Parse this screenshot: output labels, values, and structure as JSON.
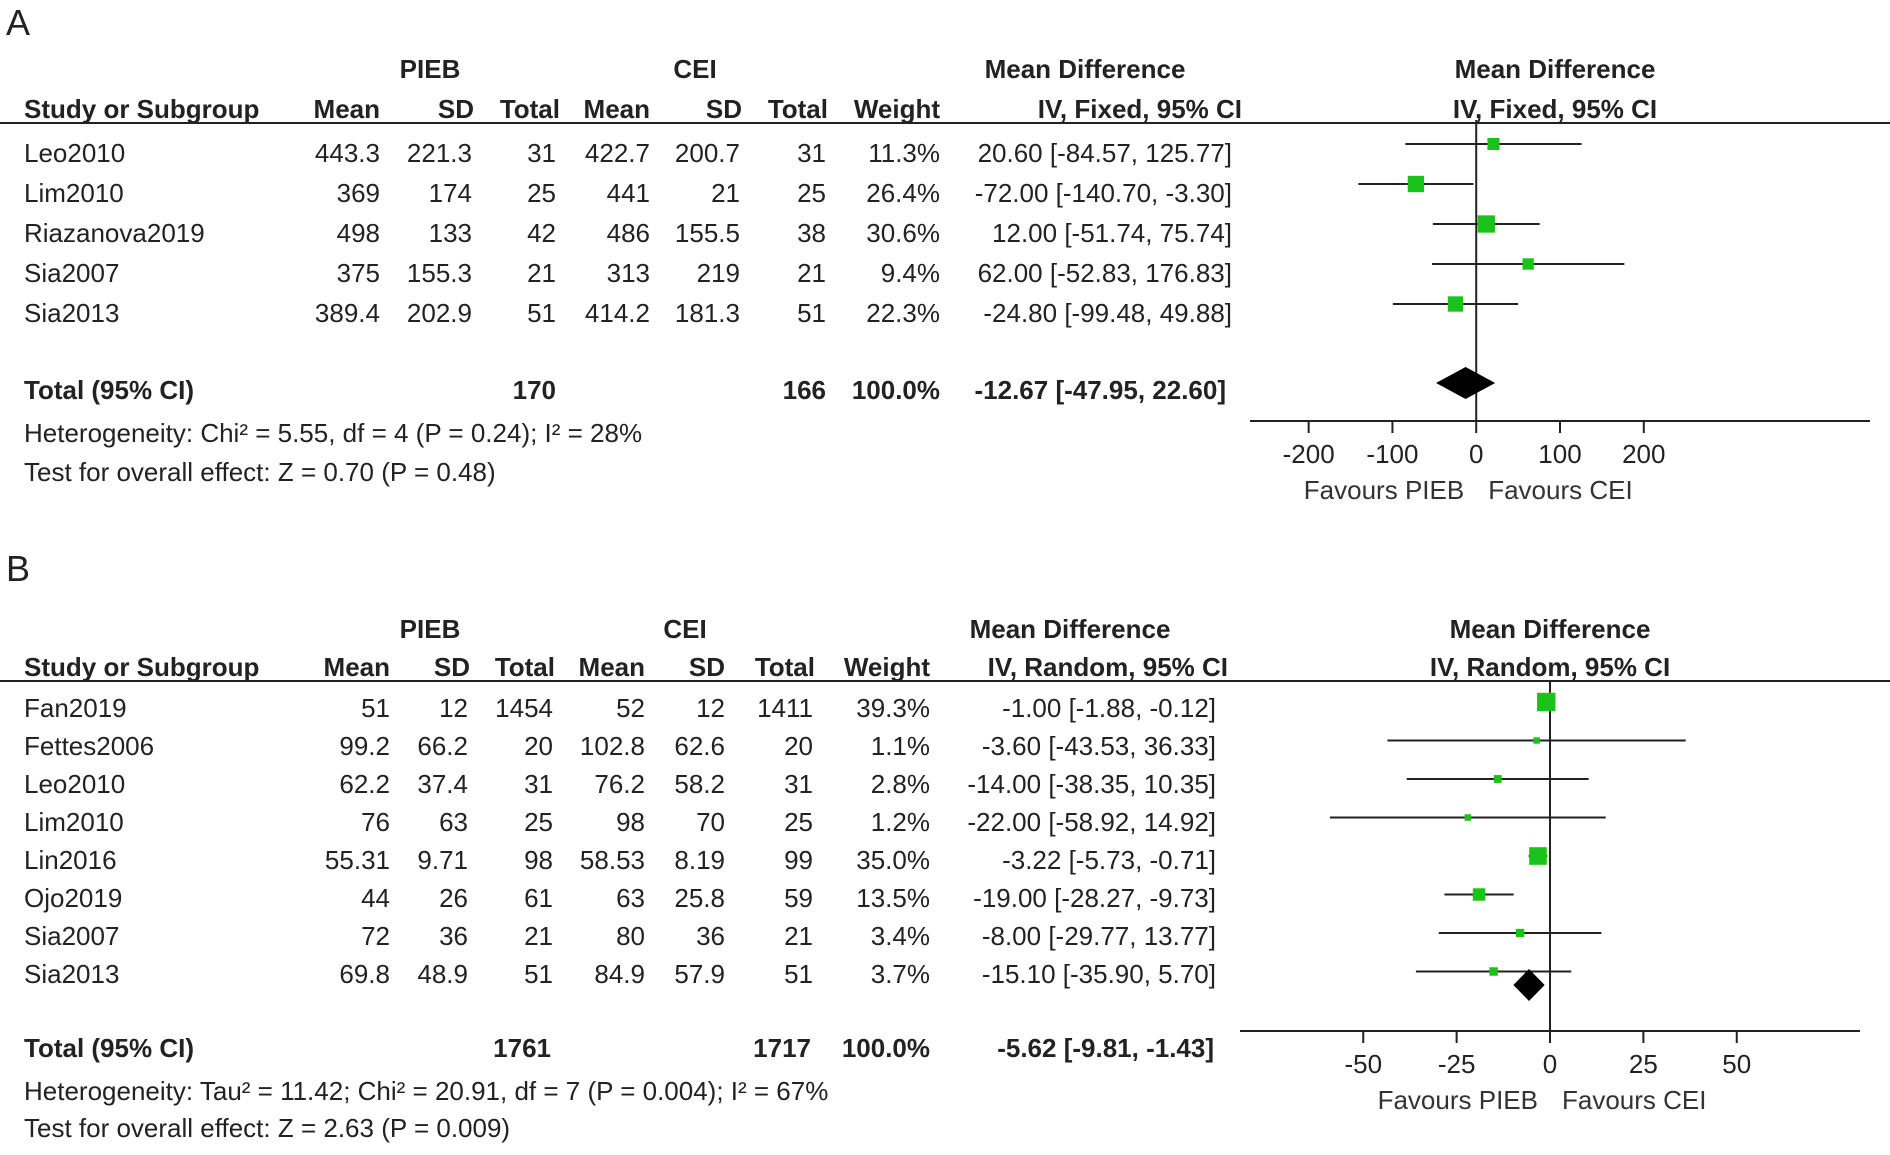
{
  "chart_data": [
    {
      "type": "forest",
      "panel_label": "A",
      "group_labels": {
        "experimental": "PIEB",
        "control": "CEI"
      },
      "columns": [
        "Study or Subgroup",
        "Mean",
        "SD",
        "Total",
        "Mean",
        "SD",
        "Total",
        "Weight",
        "IV, Fixed, 95% CI",
        "IV, Fixed, 95% CI"
      ],
      "effect_header": "Mean Difference",
      "studies": [
        {
          "name": "Leo2010",
          "e_mean": "443.3",
          "e_sd": "221.3",
          "e_total": "31",
          "c_mean": "422.7",
          "c_sd": "200.7",
          "c_total": "31",
          "weight": "11.3%",
          "ci_text": "20.60 [-84.57, 125.77]",
          "md": 20.6,
          "lo": -84.57,
          "hi": 125.77,
          "w": 11.3
        },
        {
          "name": "Lim2010",
          "e_mean": "369",
          "e_sd": "174",
          "e_total": "25",
          "c_mean": "441",
          "c_sd": "21",
          "c_total": "25",
          "weight": "26.4%",
          "ci_text": "-72.00 [-140.70, -3.30]",
          "md": -72.0,
          "lo": -140.7,
          "hi": -3.3,
          "w": 26.4
        },
        {
          "name": "Riazanova2019",
          "e_mean": "498",
          "e_sd": "133",
          "e_total": "42",
          "c_mean": "486",
          "c_sd": "155.5",
          "c_total": "38",
          "weight": "30.6%",
          "ci_text": "12.00 [-51.74, 75.74]",
          "md": 12.0,
          "lo": -51.74,
          "hi": 75.74,
          "w": 30.6
        },
        {
          "name": "Sia2007",
          "e_mean": "375",
          "e_sd": "155.3",
          "e_total": "21",
          "c_mean": "313",
          "c_sd": "219",
          "c_total": "21",
          "weight": "9.4%",
          "ci_text": "62.00 [-52.83, 176.83]",
          "md": 62.0,
          "lo": -52.83,
          "hi": 176.83,
          "w": 9.4
        },
        {
          "name": "Sia2013",
          "e_mean": "389.4",
          "e_sd": "202.9",
          "e_total": "51",
          "c_mean": "414.2",
          "c_sd": "181.3",
          "c_total": "51",
          "weight": "22.3%",
          "ci_text": "-24.80 [-99.48, 49.88]",
          "md": -24.8,
          "lo": -99.48,
          "hi": 49.88,
          "w": 22.3
        }
      ],
      "total": {
        "label": "Total (95% CI)",
        "e_total": "170",
        "c_total": "166",
        "weight": "100.0%",
        "ci_text": "-12.67 [-47.95, 22.60]",
        "md": -12.67,
        "lo": -47.95,
        "hi": 22.6
      },
      "heterogeneity": "Heterogeneity: Chi² = 5.55, df = 4 (P = 0.24); I² = 28%",
      "overall_effect": "Test for overall effect: Z = 0.70 (P = 0.48)",
      "axis": {
        "xlim": [
          -270,
          470
        ],
        "ticks": [
          -200,
          -100,
          0,
          100,
          200
        ],
        "tick_labels": [
          "-200",
          "-100",
          "0",
          "100",
          "200"
        ]
      },
      "favours_left": "Favours PIEB",
      "favours_right": "Favours CEI",
      "marker_color": "#19c319"
    },
    {
      "type": "forest",
      "panel_label": "B",
      "group_labels": {
        "experimental": "PIEB",
        "control": "CEI"
      },
      "columns": [
        "Study or Subgroup",
        "Mean",
        "SD",
        "Total",
        "Mean",
        "SD",
        "Total",
        "Weight",
        "IV, Random, 95% CI",
        "IV, Random, 95% CI"
      ],
      "effect_header": "Mean Difference",
      "studies": [
        {
          "name": "Fan2019",
          "e_mean": "51",
          "e_sd": "12",
          "e_total": "1454",
          "c_mean": "52",
          "c_sd": "12",
          "c_total": "1411",
          "weight": "39.3%",
          "ci_text": "-1.00 [-1.88, -0.12]",
          "md": -1.0,
          "lo": -1.88,
          "hi": -0.12,
          "w": 39.3
        },
        {
          "name": "Fettes2006",
          "e_mean": "99.2",
          "e_sd": "66.2",
          "e_total": "20",
          "c_mean": "102.8",
          "c_sd": "62.6",
          "c_total": "20",
          "weight": "1.1%",
          "ci_text": "-3.60 [-43.53, 36.33]",
          "md": -3.6,
          "lo": -43.53,
          "hi": 36.33,
          "w": 1.1
        },
        {
          "name": "Leo2010",
          "e_mean": "62.2",
          "e_sd": "37.4",
          "e_total": "31",
          "c_mean": "76.2",
          "c_sd": "58.2",
          "c_total": "31",
          "weight": "2.8%",
          "ci_text": "-14.00 [-38.35, 10.35]",
          "md": -14.0,
          "lo": -38.35,
          "hi": 10.35,
          "w": 2.8
        },
        {
          "name": "Lim2010",
          "e_mean": "76",
          "e_sd": "63",
          "e_total": "25",
          "c_mean": "98",
          "c_sd": "70",
          "c_total": "25",
          "weight": "1.2%",
          "ci_text": "-22.00 [-58.92, 14.92]",
          "md": -22.0,
          "lo": -58.92,
          "hi": 14.92,
          "w": 1.2
        },
        {
          "name": "Lin2016",
          "e_mean": "55.31",
          "e_sd": "9.71",
          "e_total": "98",
          "c_mean": "58.53",
          "c_sd": "8.19",
          "c_total": "99",
          "weight": "35.0%",
          "ci_text": "-3.22 [-5.73, -0.71]",
          "md": -3.22,
          "lo": -5.73,
          "hi": -0.71,
          "w": 35.0
        },
        {
          "name": "Ojo2019",
          "e_mean": "44",
          "e_sd": "26",
          "e_total": "61",
          "c_mean": "63",
          "c_sd": "25.8",
          "c_total": "59",
          "weight": "13.5%",
          "ci_text": "-19.00 [-28.27, -9.73]",
          "md": -19.0,
          "lo": -28.27,
          "hi": -9.73,
          "w": 13.5
        },
        {
          "name": "Sia2007",
          "e_mean": "72",
          "e_sd": "36",
          "e_total": "21",
          "c_mean": "80",
          "c_sd": "36",
          "c_total": "21",
          "weight": "3.4%",
          "ci_text": "-8.00 [-29.77, 13.77]",
          "md": -8.0,
          "lo": -29.77,
          "hi": 13.77,
          "w": 3.4
        },
        {
          "name": "Sia2013",
          "e_mean": "69.8",
          "e_sd": "48.9",
          "e_total": "51",
          "c_mean": "84.9",
          "c_sd": "57.9",
          "c_total": "51",
          "weight": "3.7%",
          "ci_text": "-15.10 [-35.90, 5.70]",
          "md": -15.1,
          "lo": -35.9,
          "hi": 5.7,
          "w": 3.7
        }
      ],
      "total": {
        "label": "Total (95% CI)",
        "e_total": "1761",
        "c_total": "1717",
        "weight": "100.0%",
        "ci_text": "-5.62 [-9.81, -1.43]",
        "md": -5.62,
        "lo": -9.81,
        "hi": -1.43
      },
      "heterogeneity": "Heterogeneity: Tau² = 11.42; Chi² = 20.91, df = 7 (P = 0.004); I² = 67%",
      "overall_effect": "Test for overall effect: Z = 2.63 (P = 0.009)",
      "axis": {
        "xlim": [
          -83,
          83
        ],
        "ticks": [
          -50,
          -25,
          0,
          25,
          50
        ],
        "tick_labels": [
          "-50",
          "-25",
          "0",
          "25",
          "50"
        ]
      },
      "favours_left": "Favours PIEB",
      "favours_right": "Favours CEI",
      "marker_color": "#19c319"
    }
  ]
}
